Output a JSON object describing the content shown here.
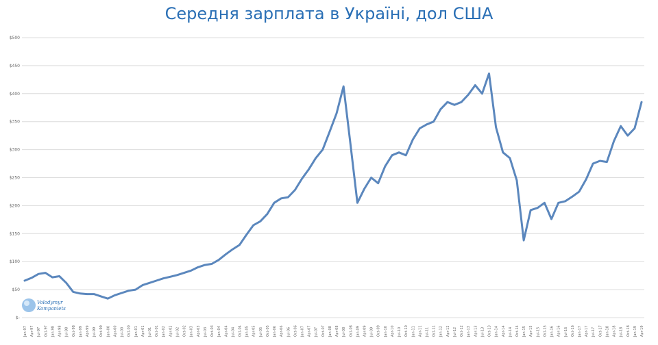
{
  "chart_data": {
    "type": "line",
    "title": "Середня зарплата в Україні, дол США",
    "xlabel": "",
    "ylabel": "",
    "ylim": [
      0,
      500
    ],
    "grid": true,
    "legend": "none",
    "y_ticks": [
      "$-",
      "$50",
      "$100",
      "$150",
      "$200",
      "$250",
      "$300",
      "$350",
      "$400",
      "$450",
      "$500"
    ],
    "x_ticks": [
      "Jan-97",
      "Apr-97",
      "Jul-97",
      "Oct-97",
      "Jan-98",
      "Apr-98",
      "Jul-98",
      "Oct-98",
      "Jan-99",
      "Apr-99",
      "Jul-99",
      "Oct-99",
      "Jan-00",
      "Apr-00",
      "Jul-00",
      "Oct-00",
      "Jan-01",
      "Apr-01",
      "Jul-01",
      "Oct-01",
      "Jan-02",
      "Apr-02",
      "Jul-02",
      "Oct-02",
      "Jan-03",
      "Apr-03",
      "Jul-03",
      "Oct-03",
      "Jan-04",
      "Apr-04",
      "Jul-04",
      "Oct-04",
      "Jan-05",
      "Apr-05",
      "Jul-05",
      "Oct-05",
      "Jan-06",
      "Apr-06",
      "Jul-06",
      "Oct-06",
      "Jan-07",
      "Apr-07",
      "Jul-07",
      "Oct-07",
      "Jan-08",
      "Apr-08",
      "Jul-08",
      "Oct-08",
      "Jan-09",
      "Apr-09",
      "Jul-09",
      "Oct-09",
      "Jan-10",
      "Apr-10",
      "Jul-10",
      "Oct-10",
      "Jan-11",
      "Apr-11",
      "Jul-11",
      "Oct-11",
      "Jan-12",
      "Apr-12",
      "Jul-12",
      "Oct-12",
      "Jan-13",
      "Apr-13",
      "Jul-13",
      "Oct-13",
      "Jan-14",
      "Apr-14",
      "Jul-14",
      "Oct-14",
      "Jan-15",
      "Apr-15",
      "Jul-15",
      "Oct-15",
      "Jan-16",
      "Apr-16",
      "Jul-16",
      "Oct-16",
      "Jan-17",
      "Apr-17",
      "Jul-17",
      "Oct-17",
      "Jan-18",
      "Apr-18",
      "Jul-18",
      "Oct-18",
      "Jan-19",
      "Apr-19"
    ],
    "series": [
      {
        "color": "#5b87bd",
        "x": [
          "Jan-97",
          "Apr-97",
          "Jul-97",
          "Oct-97",
          "Jan-98",
          "Apr-98",
          "Jul-98",
          "Oct-98",
          "Jan-99",
          "Apr-99",
          "Jul-99",
          "Oct-99",
          "Jan-00",
          "Apr-00",
          "Jul-00",
          "Oct-00",
          "Jan-01",
          "Apr-01",
          "Jul-01",
          "Oct-01",
          "Jan-02",
          "Apr-02",
          "Jul-02",
          "Oct-02",
          "Jan-03",
          "Apr-03",
          "Jul-03",
          "Oct-03",
          "Jan-04",
          "Apr-04",
          "Jul-04",
          "Oct-04",
          "Jan-05",
          "Apr-05",
          "Jul-05",
          "Oct-05",
          "Jan-06",
          "Apr-06",
          "Jul-06",
          "Oct-06",
          "Jan-07",
          "Apr-07",
          "Jul-07",
          "Oct-07",
          "Jan-08",
          "Apr-08",
          "Jul-08",
          "Oct-08",
          "Jan-09",
          "Apr-09",
          "Jul-09",
          "Oct-09",
          "Jan-10",
          "Apr-10",
          "Jul-10",
          "Oct-10",
          "Jan-11",
          "Apr-11",
          "Jul-11",
          "Oct-11",
          "Jan-12",
          "Apr-12",
          "Jul-12",
          "Oct-12",
          "Jan-13",
          "Apr-13",
          "Jul-13",
          "Oct-13",
          "Jan-14",
          "Apr-14",
          "Jul-14",
          "Oct-14",
          "Jan-15",
          "Apr-15",
          "Jul-15",
          "Oct-15",
          "Jan-16",
          "Apr-16",
          "Jul-16",
          "Oct-16",
          "Jan-17",
          "Apr-17",
          "Jul-17",
          "Oct-17",
          "Jan-18",
          "Apr-18",
          "Jul-18",
          "Oct-18",
          "Jan-19",
          "Apr-19"
        ],
        "values": [
          66,
          71,
          78,
          80,
          72,
          74,
          62,
          46,
          43,
          42,
          42,
          38,
          34,
          40,
          44,
          48,
          50,
          58,
          62,
          66,
          70,
          73,
          76,
          80,
          84,
          90,
          94,
          96,
          103,
          113,
          122,
          130,
          148,
          165,
          172,
          185,
          205,
          213,
          215,
          228,
          248,
          265,
          285,
          300,
          332,
          365,
          413,
          310,
          205,
          230,
          250,
          240,
          270,
          290,
          295,
          290,
          318,
          338,
          345,
          350,
          372,
          385,
          380,
          385,
          398,
          415,
          400,
          436,
          340,
          295,
          285,
          245,
          138,
          192,
          196,
          205,
          176,
          205,
          208,
          216,
          225,
          247,
          275,
          280,
          278,
          315,
          342,
          325,
          338,
          385
        ]
      }
    ]
  },
  "logo": {
    "line1": "Volodymyr",
    "line2": "Kompaniets"
  }
}
